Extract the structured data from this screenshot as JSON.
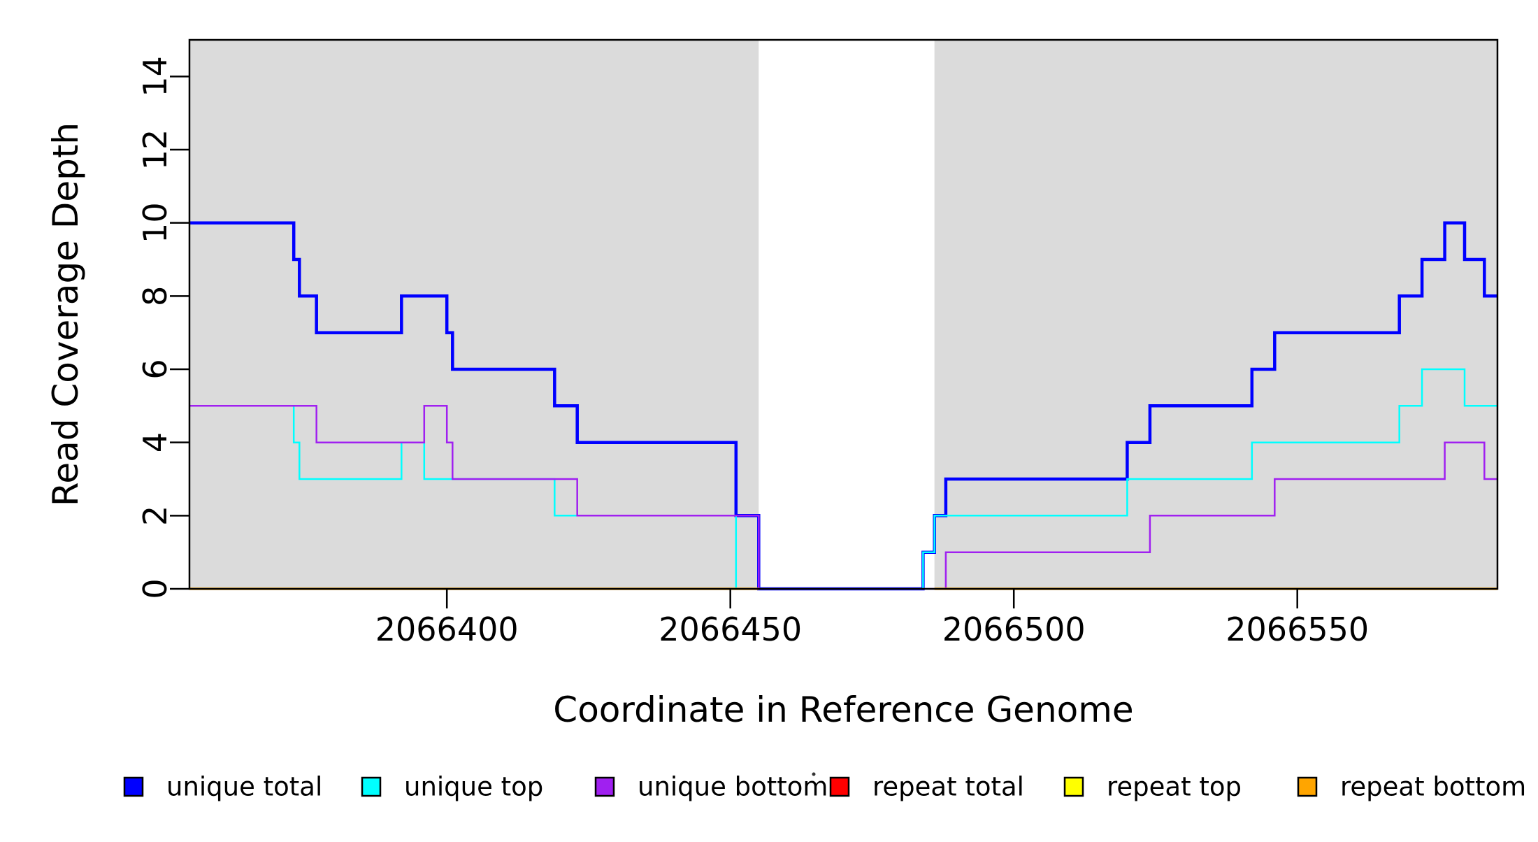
{
  "chart_data": {
    "type": "line",
    "subtype": "step",
    "title": "",
    "xlabel": "Coordinate in Reference Genome",
    "ylabel": "Read Coverage Depth",
    "xlim": [
      2066354.6,
      2066585.3
    ],
    "ylim": [
      0,
      15
    ],
    "grid": false,
    "legend_position": "bottom",
    "panel_color": "#DBDBDB",
    "gap_region": {
      "x0": 2066455,
      "x1": 2066486,
      "color": "#FFFFFF"
    },
    "background_regions": [
      {
        "name": "shaded-left",
        "x0": 2066354.6,
        "x1": 2066455,
        "color": "#DBDBDB"
      },
      {
        "name": "shaded-right",
        "x0": 2066486,
        "x1": 2066585.3,
        "color": "#DBDBDB"
      }
    ],
    "x_ticks": [
      {
        "value": 2066400,
        "label": "2066400"
      },
      {
        "value": 2066450,
        "label": "2066450"
      },
      {
        "value": 2066500,
        "label": "2066500"
      },
      {
        "value": 2066550,
        "label": "2066550"
      }
    ],
    "y_ticks": [
      {
        "value": 0,
        "label": "0"
      },
      {
        "value": 2,
        "label": "2"
      },
      {
        "value": 4,
        "label": "4"
      },
      {
        "value": 6,
        "label": "6"
      },
      {
        "value": 8,
        "label": "8"
      },
      {
        "value": 10,
        "label": "10"
      },
      {
        "value": 12,
        "label": "12"
      },
      {
        "value": 14,
        "label": "14"
      }
    ],
    "series": [
      {
        "name": "unique total",
        "color": "#0000FF",
        "width": 4.5,
        "steps": [
          [
            2066354.6,
            10
          ],
          [
            2066373,
            9
          ],
          [
            2066374,
            8
          ],
          [
            2066377,
            7
          ],
          [
            2066392,
            8
          ],
          [
            2066400,
            7
          ],
          [
            2066401,
            6
          ],
          [
            2066419,
            5
          ],
          [
            2066423,
            4
          ],
          [
            2066451,
            2
          ],
          [
            2066455,
            0
          ],
          [
            2066484,
            1
          ],
          [
            2066486,
            2
          ],
          [
            2066488,
            3
          ],
          [
            2066520,
            4
          ],
          [
            2066524,
            5
          ],
          [
            2066542,
            6
          ],
          [
            2066546,
            7
          ],
          [
            2066568,
            8
          ],
          [
            2066572,
            9
          ],
          [
            2066576,
            10
          ],
          [
            2066579.5,
            9
          ],
          [
            2066583,
            8
          ]
        ]
      },
      {
        "name": "unique top",
        "color": "#00FFFF",
        "width": 2.5,
        "steps": [
          [
            2066354.6,
            5
          ],
          [
            2066373,
            4
          ],
          [
            2066374,
            3
          ],
          [
            2066392,
            4
          ],
          [
            2066396,
            3
          ],
          [
            2066419,
            2
          ],
          [
            2066451,
            0
          ],
          [
            2066484,
            1
          ],
          [
            2066486,
            2
          ],
          [
            2066520,
            3
          ],
          [
            2066542,
            4
          ],
          [
            2066568,
            5
          ],
          [
            2066572,
            6
          ],
          [
            2066579.5,
            5
          ]
        ]
      },
      {
        "name": "unique bottom",
        "color": "#A020F0",
        "width": 2.5,
        "steps": [
          [
            2066354.6,
            5
          ],
          [
            2066377,
            4
          ],
          [
            2066396,
            5
          ],
          [
            2066400,
            4
          ],
          [
            2066401,
            3
          ],
          [
            2066423,
            2
          ],
          [
            2066455,
            0
          ],
          [
            2066488,
            1
          ],
          [
            2066524,
            2
          ],
          [
            2066546,
            3
          ],
          [
            2066576,
            4
          ],
          [
            2066583,
            3
          ]
        ]
      },
      {
        "name": "repeat total",
        "color": "#FF0000",
        "width": 2.5,
        "steps": [
          [
            2066354.6,
            0
          ],
          [
            2066455,
            null
          ],
          [
            2066486,
            0
          ]
        ]
      },
      {
        "name": "repeat top",
        "color": "#FFFF00",
        "width": 2.5,
        "steps": [
          [
            2066354.6,
            0
          ],
          [
            2066455,
            null
          ],
          [
            2066486,
            0
          ]
        ]
      },
      {
        "name": "repeat bottom",
        "color": "#FFA500",
        "width": 3.5,
        "steps": [
          [
            2066354.6,
            0
          ],
          [
            2066455,
            null
          ],
          [
            2066486,
            0
          ]
        ]
      }
    ],
    "legend": [
      {
        "label": "unique total",
        "color": "#0000FF"
      },
      {
        "label": "unique top",
        "color": "#00FFFF"
      },
      {
        "label": "unique bottom",
        "color": "#A020F0"
      },
      {
        "label": "repeat total",
        "color": "#FF0000"
      },
      {
        "label": "repeat top",
        "color": "#FFFF00"
      },
      {
        "label": "repeat bottom",
        "color": "#FFA500"
      }
    ]
  }
}
